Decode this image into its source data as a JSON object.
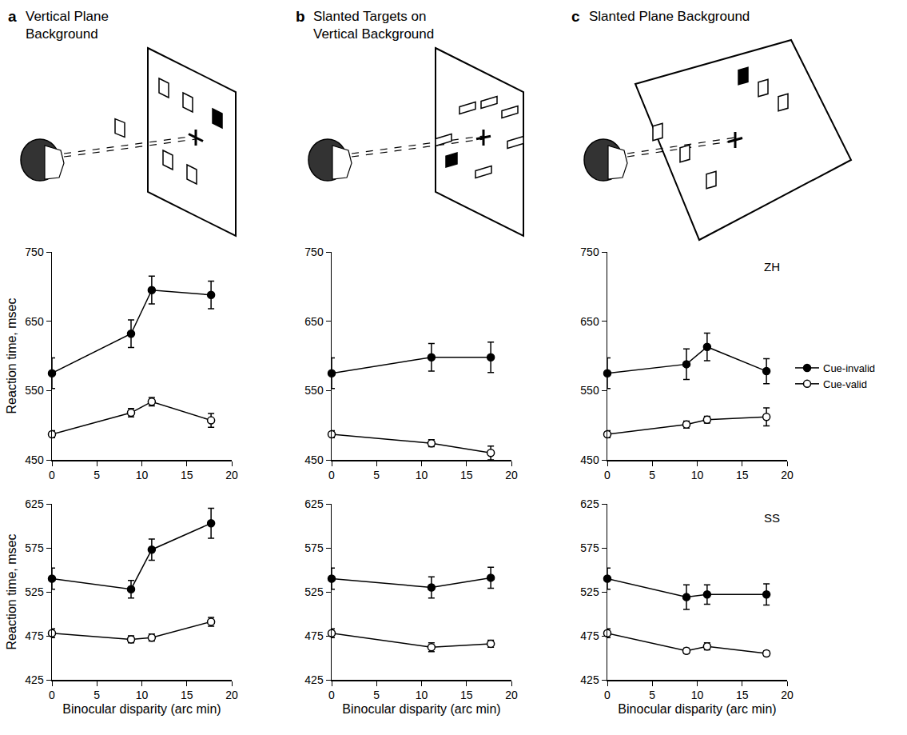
{
  "panels": [
    {
      "letter": "a",
      "title": "Vertical Plane Background"
    },
    {
      "letter": "b",
      "title": "Slanted Targets on Vertical Background"
    },
    {
      "letter": "c",
      "title": "Slanted Plane Background"
    }
  ],
  "chart_data": [
    {
      "type": "line",
      "y_label": "Reaction time, msec",
      "x": [
        0,
        8.8,
        11.1,
        17.7
      ],
      "xlim": [
        0,
        20
      ],
      "xticks": [
        0,
        5,
        10,
        15,
        20
      ],
      "ylim": [
        450,
        750
      ],
      "yticks": [
        450,
        550,
        650,
        750
      ],
      "grid": false,
      "series": [
        {
          "name": "Cue-invalid",
          "color": "#000000",
          "marker": "filled",
          "values": [
            575,
            632,
            695,
            688
          ],
          "error": [
            22,
            20,
            20,
            20
          ]
        },
        {
          "name": "Cue-valid",
          "color": "#000000",
          "marker": "open",
          "values": [
            487,
            518,
            534,
            507
          ],
          "error": [
            5,
            6,
            6,
            10
          ]
        }
      ]
    },
    {
      "type": "line",
      "x": [
        0,
        11.1,
        17.7
      ],
      "xlim": [
        0,
        20
      ],
      "xticks": [
        0,
        5,
        10,
        15,
        20
      ],
      "ylim": [
        450,
        750
      ],
      "yticks": [
        450,
        550,
        650,
        750
      ],
      "grid": false,
      "series": [
        {
          "name": "Cue-invalid",
          "color": "#000000",
          "marker": "filled",
          "values": [
            575,
            598,
            598
          ],
          "error": [
            22,
            20,
            22
          ]
        },
        {
          "name": "Cue-valid",
          "color": "#000000",
          "marker": "open",
          "values": [
            487,
            474,
            460
          ],
          "error": [
            5,
            5,
            10
          ]
        }
      ]
    },
    {
      "type": "line",
      "annotations": [
        "ZH"
      ],
      "legend": "right",
      "x": [
        0,
        8.8,
        11.1,
        17.7
      ],
      "xlim": [
        0,
        20
      ],
      "xticks": [
        0,
        5,
        10,
        15,
        20
      ],
      "ylim": [
        450,
        750
      ],
      "yticks": [
        450,
        550,
        650,
        750
      ],
      "grid": false,
      "series": [
        {
          "name": "Cue-invalid",
          "color": "#000000",
          "marker": "filled",
          "values": [
            575,
            588,
            613,
            578
          ],
          "error": [
            22,
            22,
            20,
            18
          ]
        },
        {
          "name": "Cue-valid",
          "color": "#000000",
          "marker": "open",
          "values": [
            487,
            501,
            508,
            512
          ],
          "error": [
            5,
            5,
            5,
            13
          ]
        }
      ]
    },
    {
      "type": "line",
      "y_label": "Reaction time, msec",
      "x_label": "Binocular disparity (arc min)",
      "x": [
        0,
        8.8,
        11.1,
        17.7
      ],
      "xlim": [
        0,
        20
      ],
      "xticks": [
        0,
        5,
        10,
        15,
        20
      ],
      "ylim": [
        425,
        625
      ],
      "yticks": [
        425,
        475,
        525,
        575,
        625
      ],
      "grid": false,
      "series": [
        {
          "name": "Cue-invalid",
          "color": "#000000",
          "marker": "filled",
          "values": [
            540,
            528,
            573,
            603
          ],
          "error": [
            12,
            10,
            12,
            17
          ]
        },
        {
          "name": "Cue-valid",
          "color": "#000000",
          "marker": "open",
          "values": [
            478,
            471,
            473,
            491
          ],
          "error": [
            5,
            4,
            4,
            5
          ]
        }
      ]
    },
    {
      "type": "line",
      "x_label": "Binocular disparity (arc min)",
      "x": [
        0,
        11.1,
        17.7
      ],
      "xlim": [
        0,
        20
      ],
      "xticks": [
        0,
        5,
        10,
        15,
        20
      ],
      "ylim": [
        425,
        625
      ],
      "yticks": [
        425,
        475,
        525,
        575,
        625
      ],
      "grid": false,
      "series": [
        {
          "name": "Cue-invalid",
          "color": "#000000",
          "marker": "filled",
          "values": [
            540,
            530,
            541
          ],
          "error": [
            12,
            12,
            12
          ]
        },
        {
          "name": "Cue-valid",
          "color": "#000000",
          "marker": "open",
          "values": [
            478,
            462,
            466
          ],
          "error": [
            5,
            5,
            4
          ]
        }
      ]
    },
    {
      "type": "line",
      "annotations": [
        "SS"
      ],
      "x_label": "Binocular disparity (arc min)",
      "x": [
        0,
        8.8,
        11.1,
        17.7
      ],
      "xlim": [
        0,
        20
      ],
      "xticks": [
        0,
        5,
        10,
        15,
        20
      ],
      "ylim": [
        425,
        625
      ],
      "yticks": [
        425,
        475,
        525,
        575,
        625
      ],
      "grid": false,
      "series": [
        {
          "name": "Cue-invalid",
          "color": "#000000",
          "marker": "filled",
          "values": [
            540,
            519,
            522,
            522
          ],
          "error": [
            12,
            14,
            11,
            12
          ]
        },
        {
          "name": "Cue-valid",
          "color": "#000000",
          "marker": "open",
          "values": [
            478,
            458,
            463,
            455
          ],
          "error": [
            5,
            3,
            4,
            3
          ]
        }
      ]
    }
  ]
}
